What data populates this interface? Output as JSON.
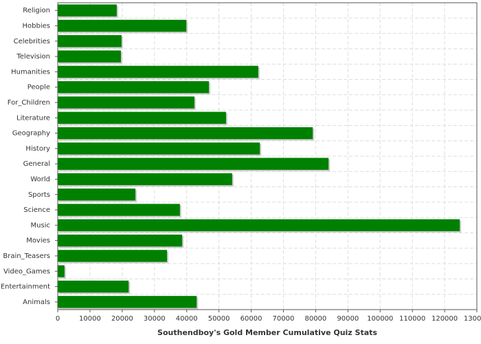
{
  "chart_data": {
    "type": "hbar",
    "title": "Southendboy's Gold Member Cumulative Quiz Stats",
    "categories": [
      "Religion",
      "Hobbies",
      "Celebrities",
      "Television",
      "Humanities",
      "People",
      "For_Children",
      "Literature",
      "Geography",
      "History",
      "General",
      "World",
      "Sports",
      "Science",
      "Music",
      "Movies",
      "Brain_Teasers",
      "Video_Games",
      "Entertainment",
      "Animals"
    ],
    "values": [
      18300,
      39900,
      19800,
      19600,
      62200,
      46900,
      42400,
      52200,
      79100,
      62700,
      84000,
      54100,
      24100,
      37900,
      124700,
      38600,
      33900,
      2100,
      22000,
      43100
    ],
    "color": "#008000",
    "xlim": [
      0,
      130000
    ],
    "xticks": [
      0,
      10000,
      20000,
      30000,
      40000,
      50000,
      60000,
      70000,
      80000,
      90000,
      100000,
      110000,
      120000,
      130000
    ],
    "grid": true
  }
}
